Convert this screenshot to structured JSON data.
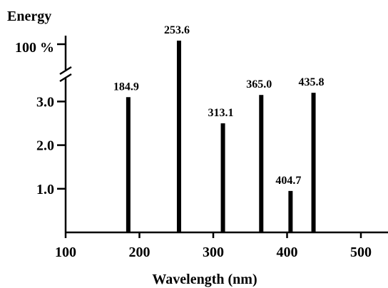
{
  "chart_data": {
    "type": "bar",
    "ylabel": "Energy",
    "xlabel": "Wavelength (nm)",
    "x_ticks": [
      "100",
      "200",
      "300",
      "400",
      "500"
    ],
    "y_ticks": [
      "1.0",
      "2.0",
      "3.0"
    ],
    "y_break_label": "100 %",
    "xlim": [
      100,
      550
    ],
    "ylim": [
      0,
      4.25
    ],
    "y_break": true,
    "grid": false,
    "series": [
      {
        "x": [
          184.9,
          253.6,
          313.1,
          365.0,
          404.7,
          435.8
        ],
        "labels": [
          "184.9",
          "253.6",
          "313.1",
          "365.0",
          "404.7",
          "435.8"
        ],
        "values": [
          3.1,
          100,
          2.5,
          3.15,
          0.95,
          3.2
        ]
      }
    ],
    "colors": {
      "bars": "#000000",
      "axis": "#000000"
    }
  }
}
